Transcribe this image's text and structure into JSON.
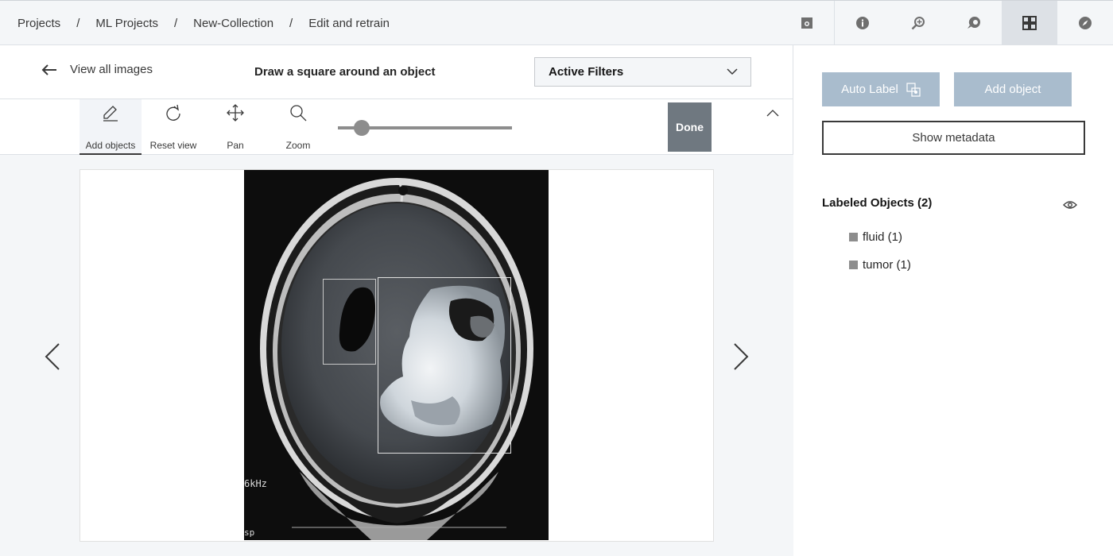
{
  "breadcrumb": {
    "items": [
      "Projects",
      "ML Projects",
      "New-Collection",
      "Edit and retrain"
    ],
    "separator": "/"
  },
  "top_icons": [
    {
      "name": "image-settings-icon",
      "active": false
    },
    {
      "name": "info-icon",
      "active": false
    },
    {
      "name": "zoom-in-icon",
      "active": false
    },
    {
      "name": "chat-icon",
      "active": false
    },
    {
      "name": "grid-view-icon",
      "active": true
    },
    {
      "name": "compass-icon",
      "active": false
    }
  ],
  "header": {
    "back_label": "View all images",
    "instruction": "Draw a square around an object",
    "filter_label": "Active Filters"
  },
  "toolbar": {
    "tools": [
      {
        "label": "Add objects",
        "icon": "pencil-icon",
        "active": true
      },
      {
        "label": "Reset view",
        "icon": "refresh-icon",
        "active": false
      },
      {
        "label": "Pan",
        "icon": "move-icon",
        "active": false
      },
      {
        "label": "Zoom",
        "icon": "search-icon",
        "active": false
      }
    ],
    "zoom_level": 0.1,
    "done_label": "Done"
  },
  "image": {
    "overlay_text_1": "6kHz",
    "overlay_text_2": "sp",
    "boxes": [
      {
        "label": "fluid"
      },
      {
        "label": "tumor"
      }
    ]
  },
  "side": {
    "auto_label": "Auto Label",
    "add_object": "Add object",
    "show_metadata": "Show metadata",
    "labeled_title": "Labeled Objects (2)",
    "objects": [
      {
        "label": "fluid (1)"
      },
      {
        "label": "tumor (1)"
      }
    ]
  },
  "colors": {
    "primary_disabled": "#a9bccd",
    "done_bg": "#6f7880",
    "swatch": "#8d8d8d"
  }
}
